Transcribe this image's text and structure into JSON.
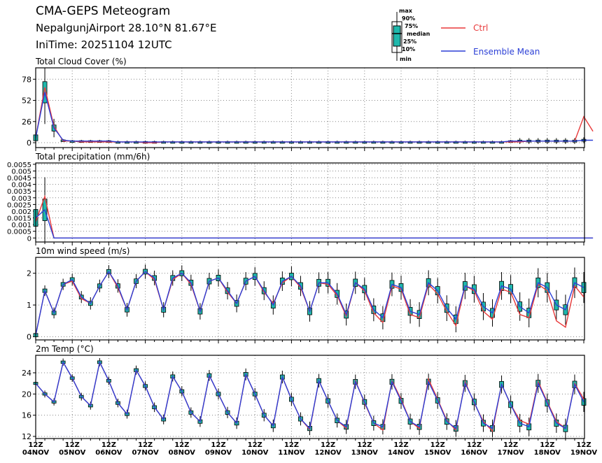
{
  "header": {
    "title": "CMA-GEPS Meteogram",
    "station": "NepalgunjAirport 28.10°N 81.67°E",
    "init": "IniTime: 20251104 12UTC"
  },
  "legend": {
    "box_labels": [
      "max",
      "90%",
      "75%",
      "median",
      "25%",
      "10%",
      "min"
    ],
    "ctrl": "Ctrl",
    "mean": "Ensemble Mean",
    "ctrl_color": "#e8393a",
    "mean_color": "#2b3fd6",
    "box_color": "#1fb8ac"
  },
  "chart_data": [
    {
      "type": "line",
      "title": "Total Cloud Cover (%)",
      "ylim": [
        -6,
        92
      ],
      "yticks": [
        "78",
        "52",
        "26",
        "0"
      ],
      "x_ticks": [
        "12Z 04NOV",
        "12Z 05NOV",
        "12Z 06NOV",
        "12Z 07NOV",
        "12Z 08NOV",
        "12Z 09NOV",
        "12Z 10NOV",
        "12Z 11NOV",
        "12Z 12NOV",
        "12Z 13NOV",
        "12Z 14NOV",
        "12Z 15NOV",
        "12Z 16NOV",
        "12Z 17NOV",
        "12Z 18NOV",
        "12Z 19NOV"
      ],
      "step_hours": 6,
      "series": [
        {
          "name": "Ctrl",
          "values": [
            6,
            68,
            20,
            2,
            2,
            1,
            1,
            1,
            1,
            1,
            1,
            1,
            0,
            0,
            1,
            1,
            1,
            1,
            1,
            1,
            1,
            1,
            1,
            1,
            1,
            1,
            1,
            1,
            1,
            1,
            1,
            1,
            1,
            1,
            1,
            1,
            1,
            1,
            1,
            1,
            1,
            1,
            1,
            1,
            1,
            1,
            1,
            1,
            1,
            1,
            1,
            1,
            1,
            1,
            2,
            2,
            2,
            2,
            2,
            2,
            32,
            14
          ]
        },
        {
          "name": "Ensemble Mean",
          "values": [
            6,
            62,
            18,
            3,
            2,
            2,
            2,
            2,
            2,
            1,
            1,
            1,
            1,
            1,
            1,
            1,
            1,
            1,
            1,
            1,
            1,
            1,
            1,
            1,
            1,
            1,
            1,
            1,
            1,
            1,
            1,
            1,
            1,
            1,
            1,
            1,
            1,
            1,
            1,
            1,
            1,
            1,
            1,
            1,
            1,
            1,
            1,
            1,
            1,
            1,
            1,
            1,
            2,
            2,
            2,
            2,
            2,
            2,
            2,
            2,
            3,
            3
          ]
        }
      ]
    },
    {
      "type": "line",
      "title": "Total precipitation (mm/6h)",
      "ylim": [
        -0.0003,
        0.0056
      ],
      "yticks": [
        "0.0055",
        "0.005",
        "0.0045",
        "0.004",
        "0.0035",
        "0.003",
        "0.0025",
        "0.002",
        "0.0015",
        "0.001",
        "0.0005",
        "0"
      ],
      "series": [
        {
          "name": "Ctrl",
          "values": [
            0.0012,
            0.0031,
            0,
            0,
            0,
            0,
            0,
            0,
            0,
            0,
            0,
            0,
            0,
            0,
            0,
            0,
            0,
            0,
            0,
            0,
            0,
            0,
            0,
            0,
            0,
            0,
            0,
            0,
            0,
            0,
            0,
            0,
            0,
            0,
            0,
            0,
            0,
            0,
            0,
            0,
            0,
            0,
            0,
            0,
            0,
            0,
            0,
            0,
            0,
            0,
            0,
            0,
            0,
            0,
            0,
            0,
            0,
            0,
            0,
            0,
            0,
            0
          ]
        },
        {
          "name": "Ensemble Mean",
          "values": [
            0.0015,
            0.0021,
            0,
            0,
            0,
            0,
            0,
            0,
            0,
            0,
            0,
            0,
            0,
            0,
            0,
            0,
            0,
            0,
            0,
            0,
            0,
            0,
            0,
            0,
            0,
            0,
            0,
            0,
            0,
            0,
            0,
            0,
            0,
            0,
            0,
            0,
            0,
            0,
            0,
            0,
            0,
            0,
            0,
            0,
            0,
            0,
            0,
            0,
            0,
            0,
            0,
            0,
            0,
            0,
            0,
            0,
            0,
            0,
            0,
            0,
            0,
            0
          ]
        }
      ]
    },
    {
      "type": "line",
      "title": "10m wind speed (m/s)",
      "ylim": [
        -0.1,
        2.5
      ],
      "yticks": [
        "2",
        "1",
        "0"
      ],
      "series": [
        {
          "name": "Ctrl",
          "values": [
            0.05,
            1.45,
            0.75,
            1.65,
            1.75,
            1.2,
            1.05,
            1.6,
            2.05,
            1.55,
            0.85,
            1.75,
            2.05,
            1.8,
            0.85,
            1.8,
            2.0,
            1.65,
            0.8,
            1.75,
            1.85,
            1.4,
            1.05,
            1.75,
            1.9,
            1.4,
            1.05,
            1.7,
            1.9,
            1.55,
            0.8,
            1.7,
            1.65,
            1.3,
            0.65,
            1.7,
            1.45,
            0.75,
            0.45,
            1.6,
            1.5,
            0.7,
            0.6,
            1.65,
            1.35,
            0.8,
            0.35,
            1.6,
            1.45,
            0.8,
            0.55,
            1.5,
            1.4,
            0.7,
            0.6,
            1.65,
            1.45,
            0.5,
            0.3,
            1.6,
            1.25
          ]
        },
        {
          "name": "Ensemble Mean",
          "values": [
            0.05,
            1.45,
            0.75,
            1.65,
            1.8,
            1.25,
            1.05,
            1.6,
            2.05,
            1.6,
            0.85,
            1.75,
            2.05,
            1.85,
            0.85,
            1.85,
            2.0,
            1.7,
            0.8,
            1.75,
            1.85,
            1.45,
            1.05,
            1.75,
            1.9,
            1.45,
            1.0,
            1.75,
            1.9,
            1.6,
            0.8,
            1.7,
            1.7,
            1.35,
            0.7,
            1.7,
            1.5,
            0.85,
            0.6,
            1.65,
            1.55,
            0.8,
            0.7,
            1.7,
            1.45,
            0.9,
            0.55,
            1.6,
            1.5,
            0.95,
            0.75,
            1.6,
            1.5,
            0.95,
            0.75,
            1.7,
            1.55,
            1.0,
            0.85,
            1.7,
            1.55
          ]
        }
      ]
    },
    {
      "type": "line",
      "title": "2m Temp (°C)",
      "ylim": [
        11.6,
        27.3
      ],
      "yticks": [
        "24",
        "20",
        "16",
        "12"
      ],
      "series": [
        {
          "name": "Ctrl",
          "values": [
            22.0,
            20.0,
            18.5,
            26.0,
            23.0,
            19.5,
            17.8,
            26.0,
            22.5,
            18.3,
            16.2,
            24.5,
            21.5,
            17.5,
            15.2,
            23.3,
            20.5,
            16.5,
            14.8,
            23.5,
            20.0,
            16.5,
            14.5,
            23.7,
            20.0,
            16.0,
            14.0,
            23.2,
            19.0,
            15.3,
            13.3,
            22.5,
            18.7,
            15.0,
            13.5,
            22.5,
            18.3,
            14.5,
            13.2,
            22.5,
            19.0,
            14.8,
            13.5,
            22.8,
            19.0,
            15.0,
            13.2,
            22.3,
            18.3,
            14.8,
            13.0,
            21.8,
            18.0,
            15.0,
            14.3,
            22.3,
            18.5,
            14.8,
            13.5,
            22.0,
            19.0
          ]
        },
        {
          "name": "Ensemble Mean",
          "values": [
            22.0,
            20.0,
            18.5,
            26.0,
            23.0,
            19.5,
            17.8,
            26.0,
            22.5,
            18.3,
            16.2,
            24.5,
            21.5,
            17.5,
            15.2,
            23.3,
            20.5,
            16.5,
            14.8,
            23.5,
            20.0,
            16.5,
            14.5,
            23.7,
            20.0,
            16.0,
            14.0,
            23.2,
            19.0,
            15.3,
            13.5,
            22.5,
            18.7,
            15.0,
            13.8,
            22.3,
            18.5,
            14.5,
            13.8,
            22.3,
            18.7,
            14.8,
            13.8,
            22.3,
            18.8,
            14.8,
            13.5,
            22.0,
            18.5,
            14.5,
            13.5,
            21.8,
            18.0,
            14.5,
            13.8,
            22.0,
            18.3,
            14.5,
            13.5,
            21.8,
            18.5
          ]
        }
      ]
    }
  ]
}
